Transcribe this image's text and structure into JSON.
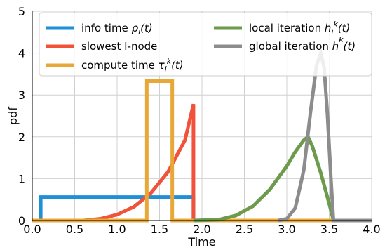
{
  "chart_data": {
    "type": "line",
    "title": "",
    "xlabel": "Time",
    "ylabel": "pdf",
    "xlim": [
      0.0,
      4.0
    ],
    "ylim": [
      0,
      5
    ],
    "xticks": [
      "0.0",
      "0.5",
      "1.0",
      "1.5",
      "2.0",
      "2.5",
      "3.0",
      "3.5",
      "4.0"
    ],
    "yticks": [
      "0",
      "1",
      "2",
      "3",
      "4",
      "5"
    ],
    "grid": true,
    "legend_position": "top",
    "series": [
      {
        "name": "info time ρᵢ(t)",
        "legend_prefix": "info time ",
        "legend_math": "ρ<tspan font-size='11' dy='4'>i</tspan><tspan dy='-4'>(t)</tspan>",
        "color": "#1f8fd6",
        "x": [
          0.1,
          0.1,
          0.1,
          1.9,
          1.9
        ],
        "y": [
          0,
          0.56,
          0.56,
          0.56,
          0
        ]
      },
      {
        "name": "slowest I-node",
        "legend_prefix": "slowest I-node",
        "legend_math": "",
        "color": "#f0533a",
        "x": [
          0.0,
          0.5,
          0.6,
          0.8,
          1.0,
          1.2,
          1.4,
          1.6,
          1.8,
          1.9,
          1.9,
          2.0
        ],
        "y": [
          0,
          0,
          0.0,
          0.04,
          0.14,
          0.33,
          0.66,
          1.16,
          1.92,
          2.78,
          0,
          0
        ]
      },
      {
        "name": "compute time τᵢᵏ(t)",
        "legend_prefix": "compute time ",
        "legend_math": "τ<tspan font-size='11' dy='4'>i</tspan><tspan font-size='11' dy='-11'>k</tspan><tspan dy='7'>(t)</tspan>",
        "color": "#e8a838",
        "x": [
          0.0,
          1.35,
          1.35,
          1.65,
          1.65,
          4.0
        ],
        "y": [
          0,
          0,
          3.33,
          3.33,
          0,
          0
        ]
      },
      {
        "name": "local iteration hᵢᵏ(t)",
        "legend_prefix": "local iteration ",
        "legend_math": "h<tspan font-size='11' dy='4'>i</tspan><tspan font-size='11' dy='-11'>k</tspan><tspan dy='7'>(t)</tspan>",
        "color": "#6e9a4b",
        "x": [
          1.9,
          2.2,
          2.4,
          2.6,
          2.8,
          3.0,
          3.1,
          3.2,
          3.25,
          3.3,
          3.4,
          3.5,
          3.55,
          4.0
        ],
        "y": [
          0,
          0.02,
          0.12,
          0.34,
          0.74,
          1.3,
          1.64,
          1.92,
          2.0,
          1.78,
          1.14,
          0.4,
          0.0,
          0
        ]
      },
      {
        "name": "global iteration hᵏ(t)",
        "legend_prefix": "global iteration ",
        "legend_math": "h<tspan font-size='11' dy='-11'>k</tspan><tspan dy='11'>(t)</tspan>",
        "color": "#8c8c8c",
        "x": [
          2.9,
          3.0,
          3.1,
          3.2,
          3.28,
          3.35,
          3.4,
          3.44,
          3.48,
          3.52,
          3.55,
          4.0
        ],
        "y": [
          0,
          0.04,
          0.3,
          1.2,
          2.6,
          3.7,
          4.0,
          3.65,
          2.5,
          1.0,
          0.0,
          0
        ]
      }
    ]
  }
}
